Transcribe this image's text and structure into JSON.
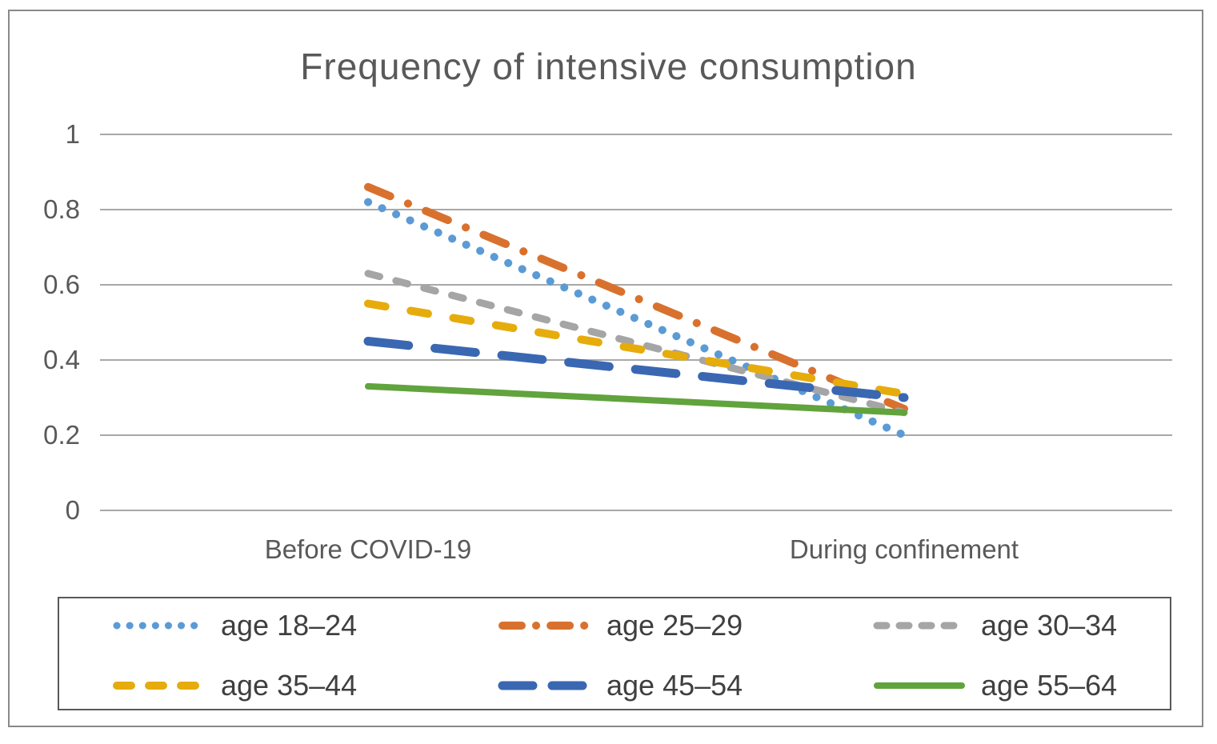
{
  "title": "Frequency of intensive consumption",
  "chart_data": {
    "type": "line",
    "title": "Frequency of intensive consumption",
    "categories": [
      "Before COVID-19",
      "During confinement"
    ],
    "xlabel": "",
    "ylabel": "",
    "ylim": [
      0,
      1
    ],
    "y_ticks": [
      0,
      0.2,
      0.4,
      0.6,
      0.8,
      1
    ],
    "y_tick_labels": [
      "0",
      "0.2",
      "0.4",
      "0.6",
      "0.8",
      "1"
    ],
    "grid": true,
    "legend_position": "bottom",
    "series": [
      {
        "name": "age 18–24",
        "values": [
          0.82,
          0.2
        ],
        "color": "#5B9BD5",
        "style": "dotted"
      },
      {
        "name": "age 25–29",
        "values": [
          0.86,
          0.27
        ],
        "color": "#D9712E",
        "style": "dash-dot"
      },
      {
        "name": "age 30–34",
        "values": [
          0.63,
          0.26
        ],
        "color": "#A5A5A5",
        "style": "dashed"
      },
      {
        "name": "age 35–44",
        "values": [
          0.55,
          0.31
        ],
        "color": "#E6AC0C",
        "style": "long-dashed"
      },
      {
        "name": "age 45–54",
        "values": [
          0.45,
          0.3
        ],
        "color": "#3A67B2",
        "style": "xlong-dash"
      },
      {
        "name": "age 55–64",
        "values": [
          0.33,
          0.26
        ],
        "color": "#61A33D",
        "style": "solid"
      }
    ],
    "gridline_color": "#A8A8A8",
    "text_color": "#595959"
  }
}
